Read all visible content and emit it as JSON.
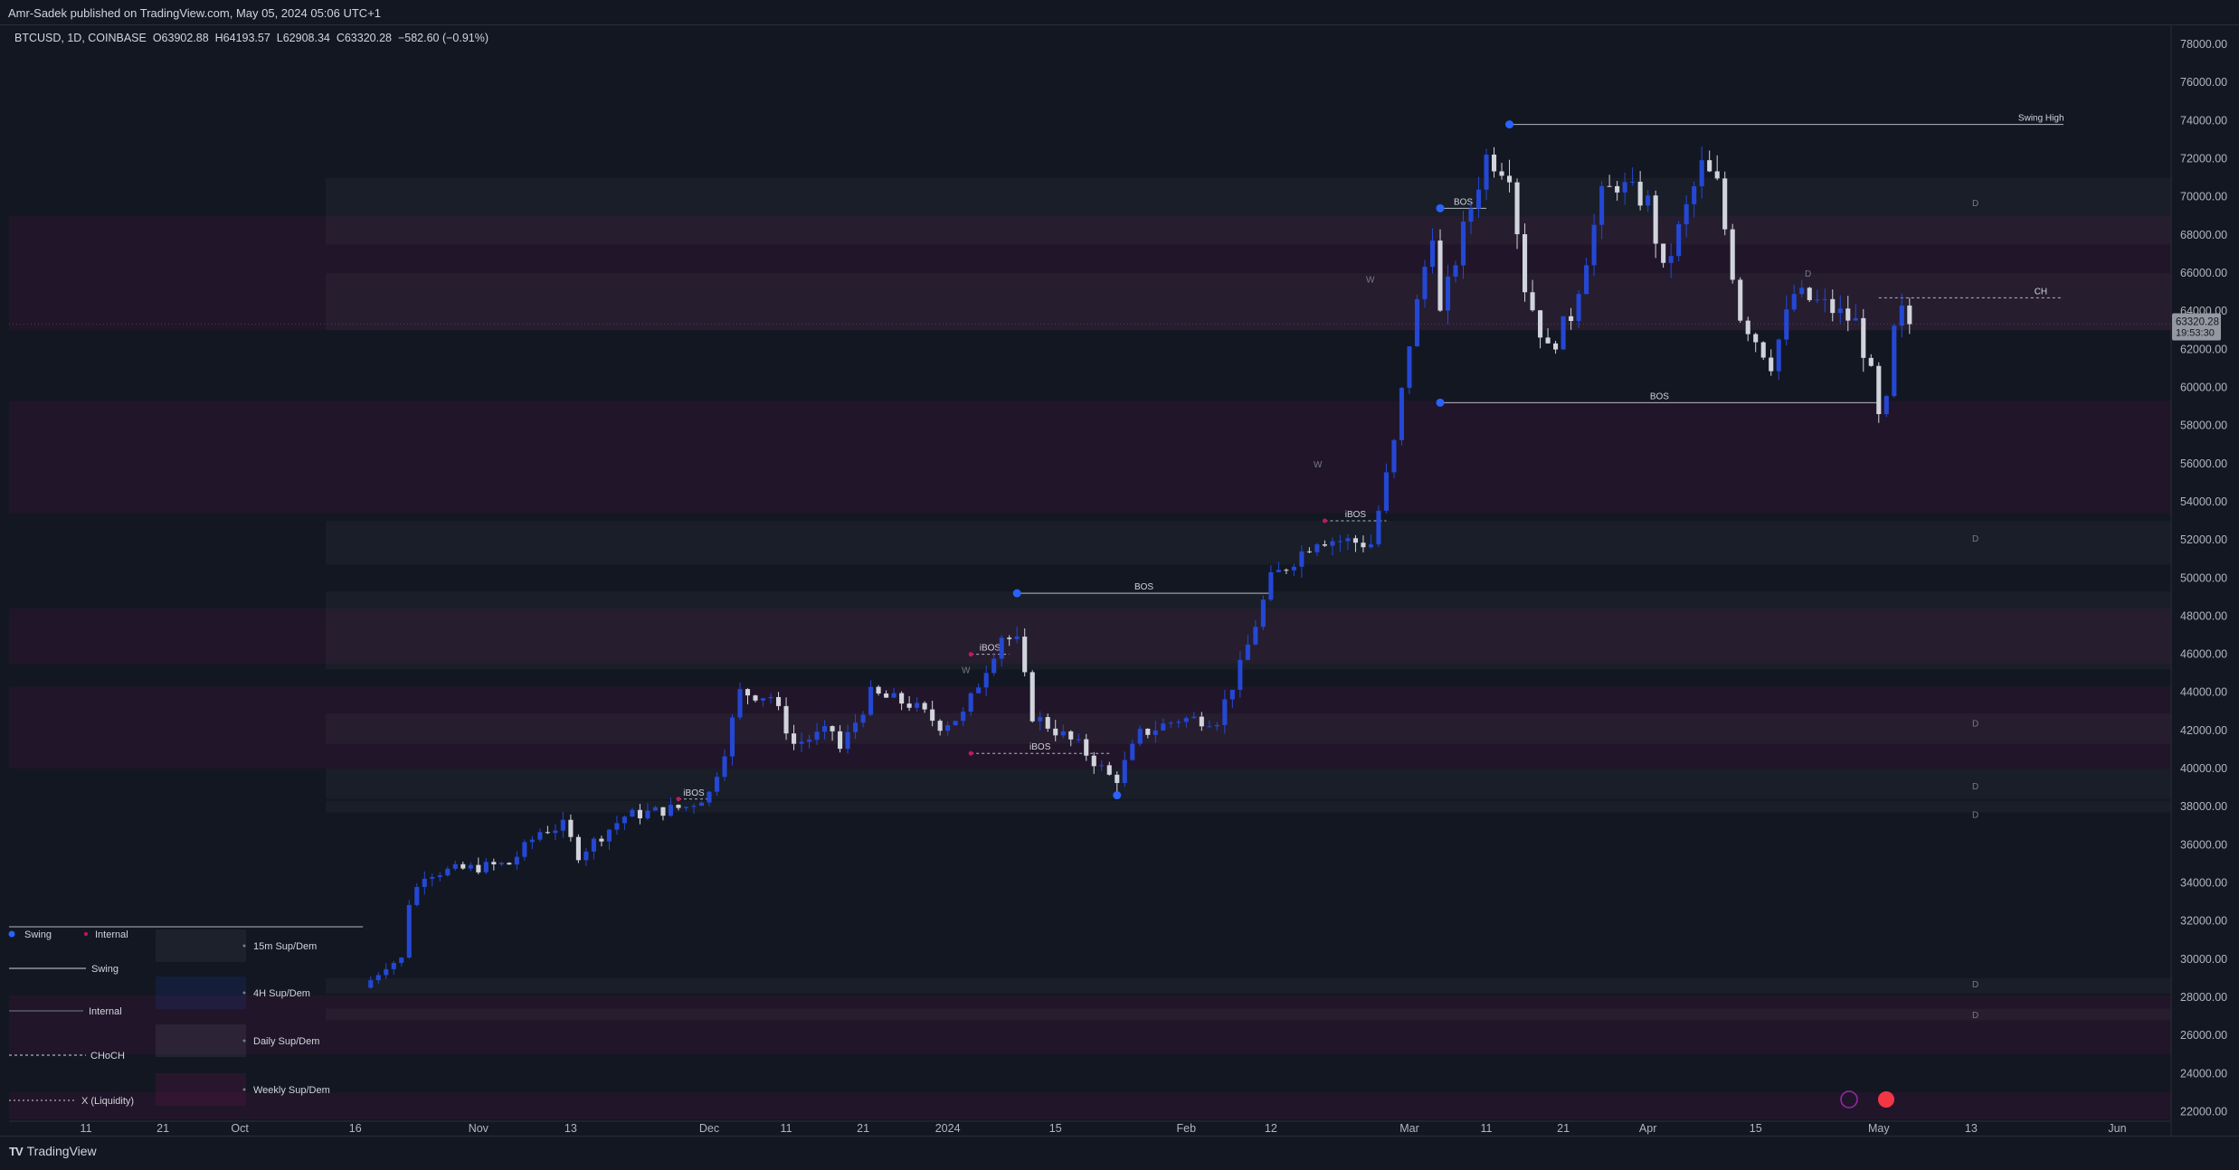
{
  "header": {
    "published_line": "Amr-Sadek published on TradingView.com, May 05, 2024 05:06 UTC+1"
  },
  "symbol_line": {
    "symbol": "BTCUSD, 1D, COINBASE",
    "open": "O63902.88",
    "high": "H64193.57",
    "low": "L62908.34",
    "close": "C63320.28",
    "change": "−582.60 (−0.91%)"
  },
  "price_tag": {
    "price": "63320.28",
    "countdown": "19:53:30",
    "color": "#9598a1"
  },
  "branding": {
    "name": "TradingView"
  },
  "legend": {
    "row1_swing": "Swing",
    "row1_internal": "Internal",
    "row2": "Swing",
    "row3": "Internal",
    "row4": "CHoCH",
    "row5": "X (Liquidity)",
    "zones": [
      "15m Sup/Dem",
      "4H Sup/Dem",
      "Daily Sup/Dem",
      "Weekly Sup/Dem"
    ]
  },
  "chart_data": {
    "type": "candlestick",
    "symbol": "BTCUSD",
    "timeframe": "1D",
    "exchange": "COINBASE",
    "y_axis": {
      "min": 21500,
      "max": 79000,
      "tick_labels": [
        "78000.00",
        "76000.00",
        "74000.00",
        "72000.00",
        "70000.00",
        "68000.00",
        "66000.00",
        "64000.00",
        "62000.00",
        "60000.00",
        "58000.00",
        "56000.00",
        "54000.00",
        "52000.00",
        "50000.00",
        "48000.00",
        "46000.00",
        "44000.00",
        "42000.00",
        "40000.00",
        "38000.00",
        "36000.00",
        "34000.00",
        "32000.00",
        "30000.00",
        "28000.00",
        "26000.00",
        "24000.00",
        "22000.00"
      ],
      "tick_values": [
        78000,
        76000,
        74000,
        72000,
        70000,
        68000,
        66000,
        64000,
        62000,
        60000,
        58000,
        56000,
        54000,
        52000,
        50000,
        48000,
        46000,
        44000,
        42000,
        40000,
        38000,
        36000,
        34000,
        32000,
        30000,
        28000,
        26000,
        24000,
        22000
      ]
    },
    "x_axis": {
      "start_date": "2023-09-01",
      "end_date": "2024-06-08",
      "tick_labels": [
        "11",
        "21",
        "Oct",
        "16",
        "Nov",
        "13",
        "Dec",
        "11",
        "21",
        "2024",
        "15",
        "Feb",
        "12",
        "Mar",
        "11",
        "21",
        "Apr",
        "15",
        "May",
        "13",
        "Jun"
      ],
      "tick_dates": [
        "2023-09-11",
        "2023-09-21",
        "2023-10-01",
        "2023-10-16",
        "2023-11-01",
        "2023-11-13",
        "2023-12-01",
        "2023-12-11",
        "2023-12-21",
        "2024-01-01",
        "2024-01-15",
        "2024-02-01",
        "2024-02-12",
        "2024-03-01",
        "2024-03-11",
        "2024-03-21",
        "2024-04-01",
        "2024-04-15",
        "2024-05-01",
        "2024-05-13",
        "2024-06-01"
      ]
    },
    "candle_colors": {
      "up": "#2448d4",
      "down": "#d1d4dc"
    },
    "price_path": [
      [
        "2023-10-17",
        28500
      ],
      [
        "2023-10-20",
        29700
      ],
      [
        "2023-10-22",
        30000
      ],
      [
        "2023-10-23",
        33000
      ],
      [
        "2023-10-25",
        34500
      ],
      [
        "2023-11-05",
        35000
      ],
      [
        "2023-11-09",
        36700
      ],
      [
        "2023-11-12",
        37000
      ],
      [
        "2023-11-14",
        35500
      ],
      [
        "2023-11-20",
        37500
      ],
      [
        "2023-11-28",
        38000
      ],
      [
        "2023-12-01",
        38700
      ],
      [
        "2023-12-03",
        41000
      ],
      [
        "2023-12-05",
        44000
      ],
      [
        "2023-12-09",
        43800
      ],
      [
        "2023-12-12",
        41300
      ],
      [
        "2023-12-17",
        42000
      ],
      [
        "2023-12-18",
        41000
      ],
      [
        "2023-12-22",
        43900
      ],
      [
        "2023-12-27",
        43400
      ],
      [
        "2023-12-31",
        42300
      ],
      [
        "2024-01-03",
        42800
      ],
      [
        "2024-01-08",
        47000
      ],
      [
        "2024-01-10",
        46600
      ],
      [
        "2024-01-12",
        42800
      ],
      [
        "2024-01-18",
        41200
      ],
      [
        "2024-01-22",
        39600
      ],
      [
        "2024-01-23",
        39500
      ],
      [
        "2024-01-26",
        41800
      ],
      [
        "2024-01-31",
        42600
      ],
      [
        "2024-02-05",
        42600
      ],
      [
        "2024-02-08",
        45300
      ],
      [
        "2024-02-12",
        49900
      ],
      [
        "2024-02-18",
        52100
      ],
      [
        "2024-02-25",
        51800
      ],
      [
        "2024-02-28",
        57000
      ],
      [
        "2024-03-01",
        62400
      ],
      [
        "2024-03-04",
        68300
      ],
      [
        "2024-03-05",
        63800
      ],
      [
        "2024-03-08",
        68200
      ],
      [
        "2024-03-11",
        72100
      ],
      [
        "2024-03-14",
        71400
      ],
      [
        "2024-03-16",
        65300
      ],
      [
        "2024-03-19",
        61900
      ],
      [
        "2024-03-22",
        63800
      ],
      [
        "2024-03-26",
        70000
      ],
      [
        "2024-03-28",
        70700
      ],
      [
        "2024-04-01",
        69700
      ],
      [
        "2024-04-03",
        66000
      ],
      [
        "2024-04-08",
        71600
      ],
      [
        "2024-04-10",
        70600
      ],
      [
        "2024-04-13",
        63800
      ],
      [
        "2024-04-17",
        61300
      ],
      [
        "2024-04-20",
        64900
      ],
      [
        "2024-04-24",
        64300
      ],
      [
        "2024-04-28",
        63400
      ],
      [
        "2024-04-30",
        60600
      ],
      [
        "2024-05-01",
        58300
      ],
      [
        "2024-05-02",
        59100
      ],
      [
        "2024-05-03",
        62900
      ],
      [
        "2024-05-04",
        63900
      ],
      [
        "2024-05-05",
        63320
      ]
    ],
    "structure_lines": [
      {
        "label": "Swing High",
        "price": 73800,
        "from": "2024-03-14",
        "to": "2024-05-25",
        "style": "solid"
      },
      {
        "label": "BOS",
        "price": 49200,
        "from": "2024-01-10",
        "to": "2024-02-12",
        "style": "solid"
      },
      {
        "label": "BOS",
        "price": 59200,
        "from": "2024-03-05",
        "to": "2024-05-01",
        "style": "solid"
      },
      {
        "label": "BOS",
        "price": 69400,
        "from": "2024-03-05",
        "to": "2024-03-11",
        "style": "solid"
      },
      {
        "label": "iBOS",
        "price": 38400,
        "from": "2023-11-27",
        "to": "2023-12-01",
        "style": "dashed"
      },
      {
        "label": "iBOS",
        "price": 46000,
        "from": "2024-01-04",
        "to": "2024-01-09",
        "style": "dashed"
      },
      {
        "label": "iBOS",
        "price": 40800,
        "from": "2024-01-04",
        "to": "2024-01-22",
        "style": "dashed"
      },
      {
        "label": "iBOS",
        "price": 53000,
        "from": "2024-02-19",
        "to": "2024-02-27",
        "style": "dashed"
      },
      {
        "label": "CH",
        "price": 64700,
        "from": "2024-05-01",
        "to": "2024-05-25",
        "style": "dashed"
      },
      {
        "label": "",
        "price": 31700,
        "from": "2023-09-01",
        "to": "2023-10-17",
        "style": "solid"
      }
    ],
    "zone_labels": {
      "D": "D",
      "W": "W"
    },
    "zones": [
      {
        "type": "weekly",
        "top": 69000,
        "bottom": 63000
      },
      {
        "type": "weekly",
        "top": 59300,
        "bottom": 53400
      },
      {
        "type": "weekly",
        "top": 48400,
        "bottom": 45500
      },
      {
        "type": "weekly",
        "top": 44300,
        "bottom": 40000
      },
      {
        "type": "weekly",
        "top": 28100,
        "bottom": 25000
      },
      {
        "type": "weekly",
        "top": 23000,
        "bottom": 21600
      },
      {
        "type": "daily",
        "top": 71000,
        "bottom": 67500
      },
      {
        "type": "daily",
        "top": 66000,
        "bottom": 63000
      },
      {
        "type": "daily",
        "top": 53000,
        "bottom": 50700
      },
      {
        "type": "daily",
        "top": 49300,
        "bottom": 45200
      },
      {
        "type": "daily",
        "top": 42900,
        "bottom": 41300
      },
      {
        "type": "daily",
        "top": 40000,
        "bottom": 38400
      },
      {
        "type": "daily",
        "top": 38300,
        "bottom": 37700
      },
      {
        "type": "daily",
        "top": 29000,
        "bottom": 28200
      },
      {
        "type": "daily",
        "top": 27400,
        "bottom": 26800
      }
    ]
  }
}
